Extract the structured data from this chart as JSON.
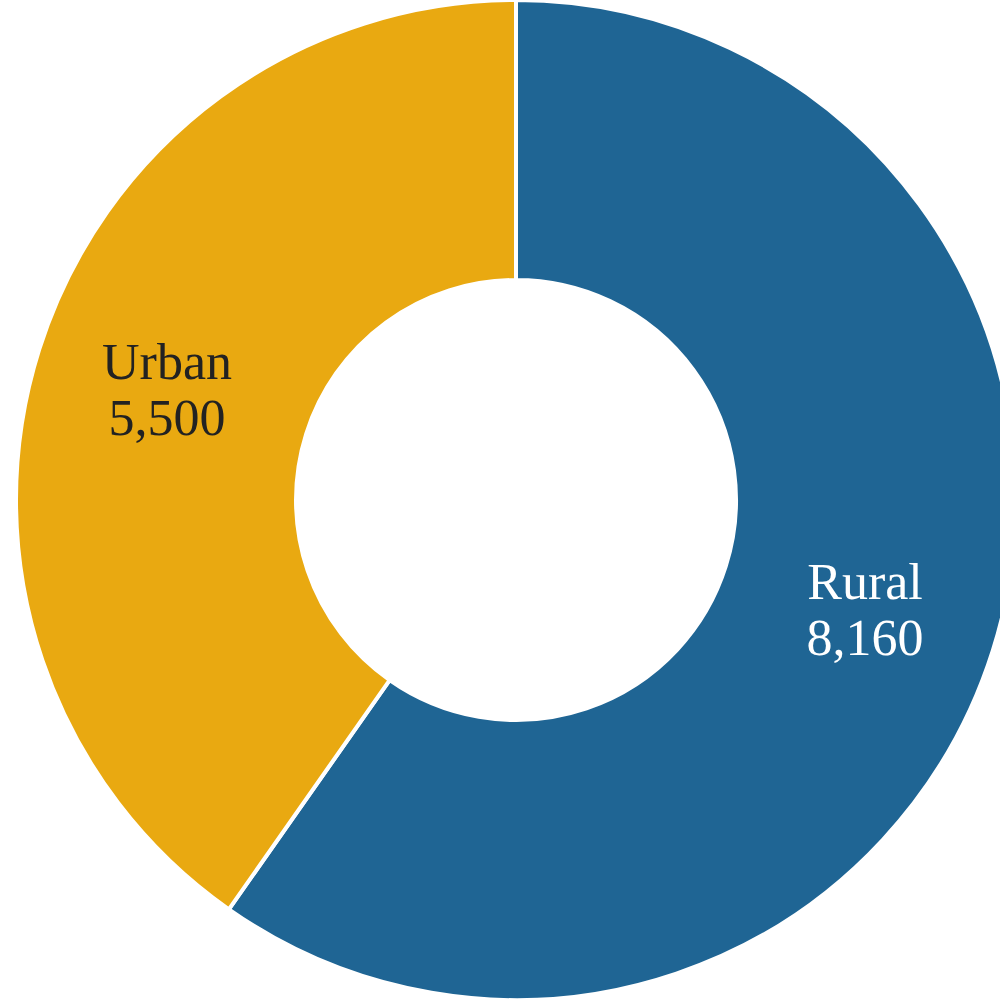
{
  "chart_data": {
    "type": "donut",
    "categories": [
      "Rural",
      "Urban"
    ],
    "values": [
      8160,
      5500
    ],
    "value_labels": [
      "8,160",
      "5,500"
    ],
    "colors": [
      "#1f6594",
      "#e9a911"
    ],
    "legend": false
  }
}
